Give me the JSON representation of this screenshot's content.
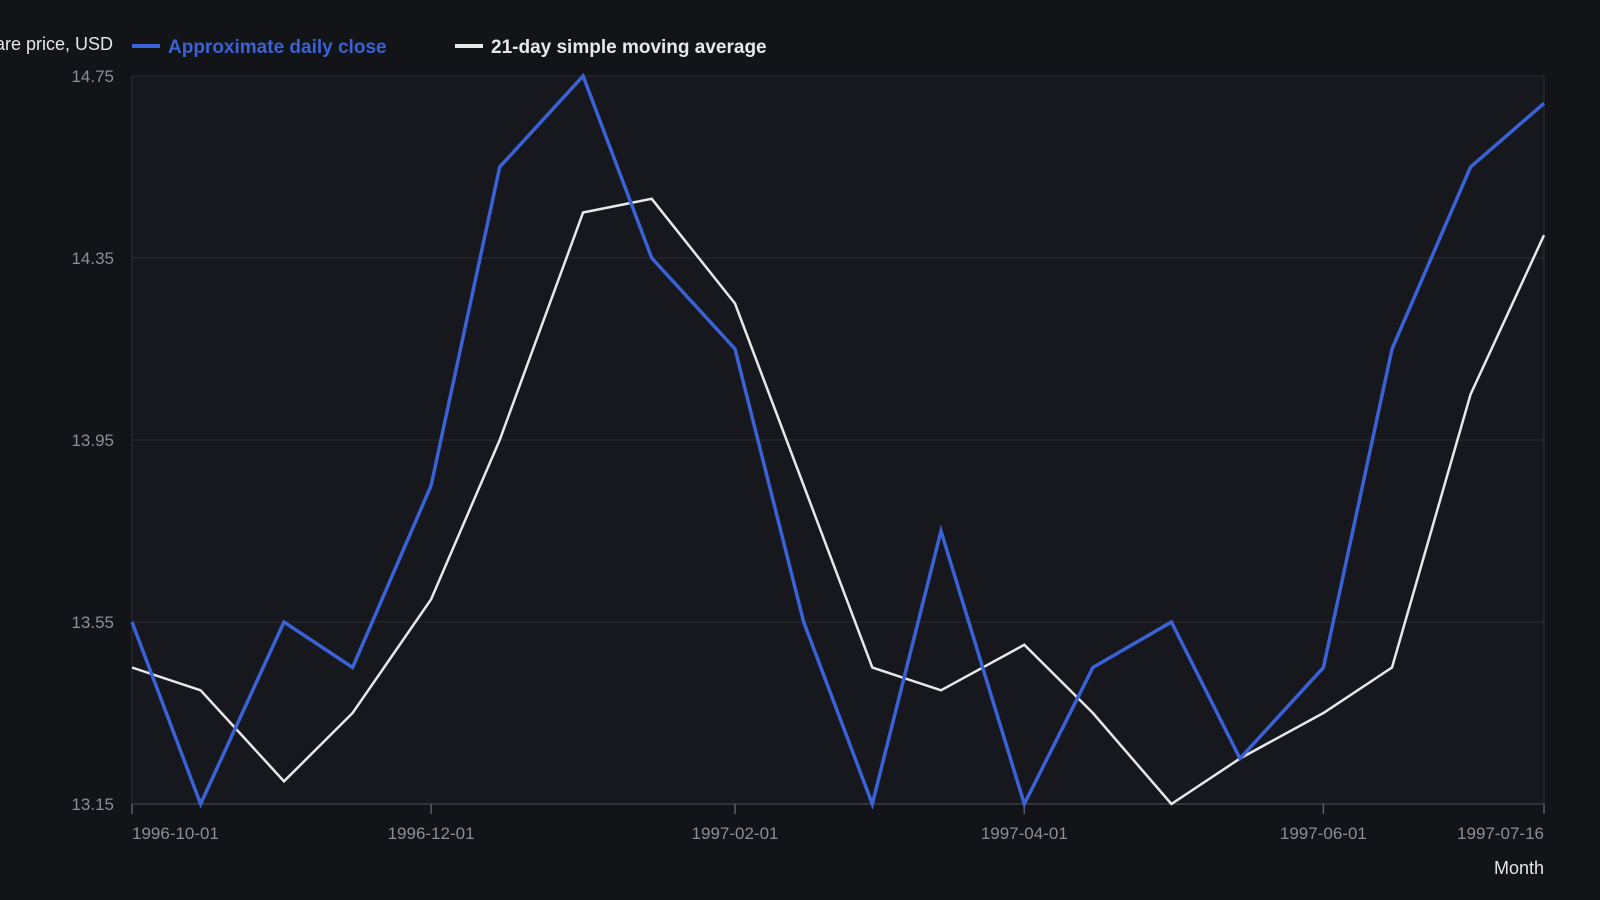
{
  "chart_data": {
    "type": "line",
    "ylabel": "Share price, USD",
    "xlabel": "Month",
    "ylim": [
      13.15,
      14.75
    ],
    "y_ticks": [
      "13.15",
      "13.55",
      "13.95",
      "14.35",
      "14.75"
    ],
    "x_range": [
      "1996-10-01",
      "1997-07-16"
    ],
    "x_ticks": [
      "1996-10-01",
      "1996-12-01",
      "1997-02-01",
      "1997-04-01",
      "1997-06-01",
      "1997-07-16"
    ],
    "grid": true,
    "legend_position": "top-left",
    "x": [
      "1996-10-01",
      "1996-10-15",
      "1996-11-01",
      "1996-11-15",
      "1996-12-01",
      "1996-12-15",
      "1997-01-01",
      "1997-01-15",
      "1997-02-01",
      "1997-02-15",
      "1997-03-01",
      "1997-03-15",
      "1997-04-01",
      "1997-04-15",
      "1997-05-01",
      "1997-05-15",
      "1997-06-01",
      "1997-06-15",
      "1997-07-01",
      "1997-07-16"
    ],
    "series": [
      {
        "name": "Approximate daily close",
        "color": "#3a62d6",
        "values": [
          13.55,
          13.15,
          13.55,
          13.45,
          13.85,
          14.55,
          14.75,
          14.35,
          14.15,
          13.55,
          13.15,
          13.75,
          13.15,
          13.45,
          13.55,
          13.25,
          13.45,
          14.15,
          14.55,
          14.69
        ]
      },
      {
        "name": "21-day simple moving average",
        "color": "#e8e8e8",
        "values": [
          13.45,
          13.4,
          13.2,
          13.35,
          13.6,
          13.95,
          14.45,
          14.48,
          14.25,
          13.85,
          13.45,
          13.4,
          13.5,
          13.35,
          13.15,
          13.25,
          13.35,
          13.45,
          14.05,
          14.4
        ]
      }
    ]
  }
}
